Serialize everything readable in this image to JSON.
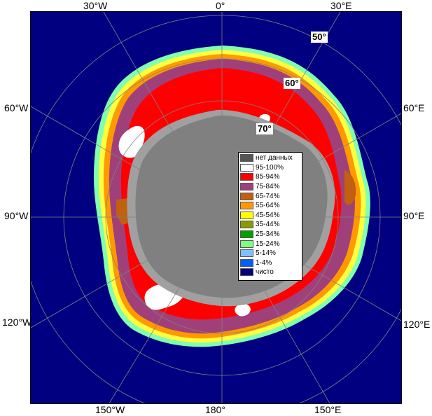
{
  "longitude_labels": {
    "top": [
      "30°W",
      "0°",
      "30°E"
    ],
    "left": [
      "60°W",
      "90°W",
      "120°W"
    ],
    "right": [
      "60°E",
      "90°E",
      "120°E"
    ],
    "bottom": [
      "150°W",
      "180°",
      "150°E"
    ]
  },
  "latitude_labels": [
    "50°",
    "60°",
    "70°"
  ],
  "legend": {
    "items": [
      {
        "label": "нет данных",
        "color": "#555555"
      },
      {
        "label": "95-100%",
        "color": "#ffffff"
      },
      {
        "label": "85-94%",
        "color": "#ff0000"
      },
      {
        "label": "75-84%",
        "color": "#a0407a"
      },
      {
        "label": "65-74%",
        "color": "#c06010"
      },
      {
        "label": "55-64%",
        "color": "#ff9900"
      },
      {
        "label": "45-54%",
        "color": "#ffff00"
      },
      {
        "label": "35-44%",
        "color": "#8a9a00"
      },
      {
        "label": "25-34%",
        "color": "#00a000"
      },
      {
        "label": "15-24%",
        "color": "#80ff80"
      },
      {
        "label": "5-14%",
        "color": "#80c0ff"
      },
      {
        "label": "1-4%",
        "color": "#0060ff"
      },
      {
        "label": "чисто",
        "color": "#000080"
      }
    ]
  },
  "colors": {
    "open_water": "#000080",
    "land": "#808080",
    "ice_shelf": "#a0a0a0"
  }
}
